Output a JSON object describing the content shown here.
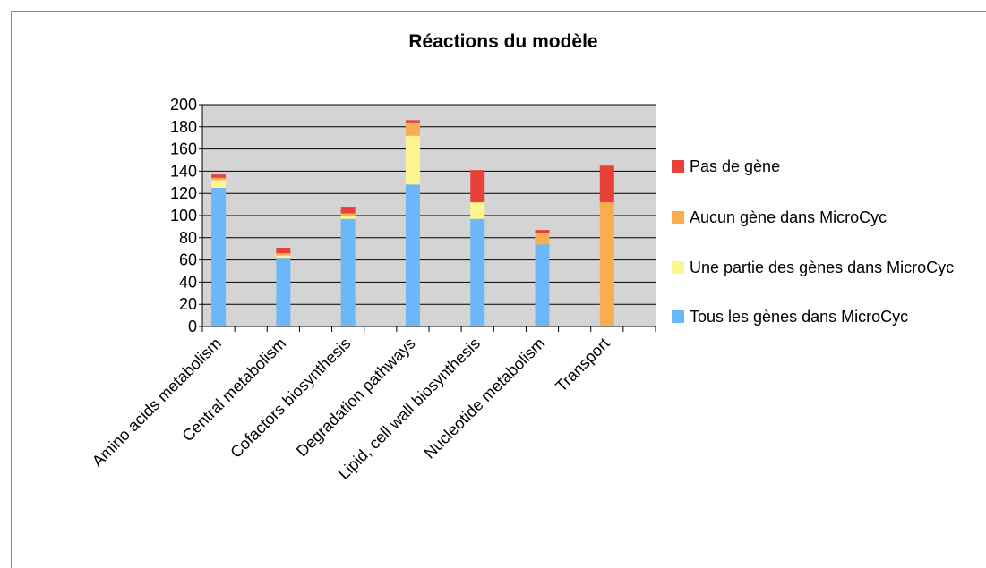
{
  "chart_data": {
    "type": "stacked_bar",
    "title": "Réactions du modèle",
    "categories": [
      "Amino acids metabolism",
      "Central  metabolism",
      "Cofactors biosynthesis",
      "Degradation pathways",
      "Lipid, cell wall biosynthesis",
      "Nucleotide metabolism",
      "Transport"
    ],
    "series": [
      {
        "name": "Tous les gènes dans MicroCyc",
        "color": "#6cb7f7",
        "values": [
          125,
          62,
          97,
          128,
          97,
          74,
          0
        ]
      },
      {
        "name": "Une partie des gènes dans MicroCyc",
        "color": "#fdf590",
        "values": [
          7,
          2,
          3,
          44,
          15,
          0,
          0
        ]
      },
      {
        "name": "Aucun gène dans MicroCyc",
        "color": "#f8ae4e",
        "values": [
          2,
          2,
          2,
          12,
          0,
          10,
          112
        ]
      },
      {
        "name": "Pas de gène",
        "color": "#e8413a",
        "values": [
          3,
          5,
          6,
          2,
          29,
          3,
          33
        ]
      }
    ],
    "ylim": [
      0,
      200
    ],
    "yticks": [
      0,
      20,
      40,
      60,
      80,
      100,
      120,
      140,
      160,
      180,
      200
    ],
    "grid": true
  }
}
